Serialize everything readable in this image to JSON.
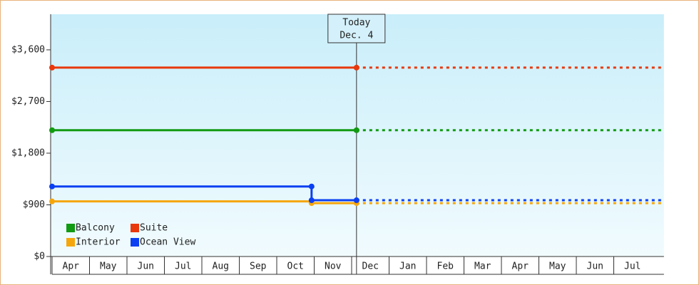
{
  "chart_data": {
    "type": "line",
    "categories": [
      "Apr",
      "May",
      "Jun",
      "Jul",
      "Aug",
      "Sep",
      "Oct",
      "Nov",
      "Dec",
      "Jan",
      "Feb",
      "Mar",
      "Apr",
      "May",
      "Jun",
      "Jul"
    ],
    "xlim": [
      0,
      16.34
    ],
    "ylim": [
      0,
      4220
    ],
    "yticks": [
      {
        "value": 0,
        "label": "$0"
      },
      {
        "value": 900,
        "label": "$900"
      },
      {
        "value": 1800,
        "label": "$1,800"
      },
      {
        "value": 2700,
        "label": "$2,700"
      },
      {
        "value": 3600,
        "label": "$3,600"
      }
    ],
    "annotation": {
      "text": [
        "Today",
        "Dec. 4"
      ],
      "x": 8.13
    },
    "legend": "bottom-left",
    "series": [
      {
        "name": "Balcony",
        "color": "#129a12",
        "x": [
          0,
          8.13
        ],
        "values": [
          2200,
          2200
        ]
      },
      {
        "name": "Suite",
        "color": "#e8380c",
        "x": [
          0,
          8.13
        ],
        "values": [
          3290,
          3290
        ]
      },
      {
        "name": "Interior",
        "color": "#f5a60c",
        "x": [
          0,
          6.93,
          6.93,
          8.13
        ],
        "values": [
          960,
          960,
          930,
          930
        ]
      },
      {
        "name": "Ocean View",
        "color": "#0b3ff2",
        "x": [
          0,
          6.93,
          6.93,
          8.13
        ],
        "values": [
          1220,
          1220,
          980,
          980
        ]
      }
    ]
  }
}
